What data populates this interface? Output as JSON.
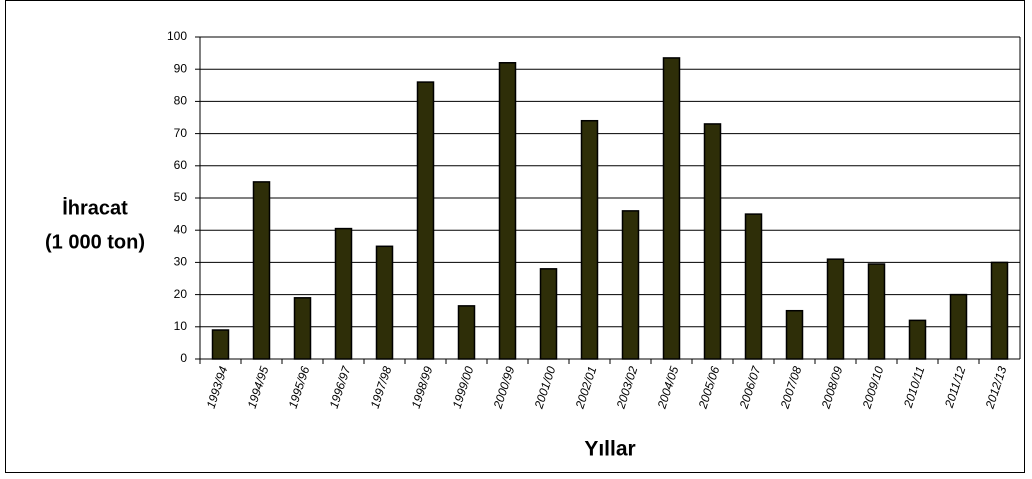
{
  "chart_data": {
    "type": "bar",
    "ylabel": [
      "İhracat",
      "(1 000 ton)"
    ],
    "xlabel": "Yıllar",
    "categories": [
      "1993/94",
      "1994/95",
      "1995/96",
      "1996/97",
      "1997/98",
      "1998/99",
      "1999/00",
      "2000/99",
      "2001/00",
      "2002/01",
      "2003/02",
      "2004/05",
      "2005/06",
      "2006/07",
      "2007/08",
      "2008/09",
      "2009/10",
      "2010/11",
      "2011/12",
      "2012/13"
    ],
    "values": [
      9,
      55,
      19,
      40.5,
      35,
      86,
      16.5,
      92,
      28,
      74,
      46,
      93.5,
      73,
      45,
      15,
      31,
      29.5,
      12,
      20,
      30
    ],
    "color": "#2e2e08",
    "ylim": [
      0,
      100
    ],
    "yticks": [
      0,
      10,
      20,
      30,
      40,
      50,
      60,
      70,
      80,
      90,
      100
    ],
    "grid": true
  }
}
